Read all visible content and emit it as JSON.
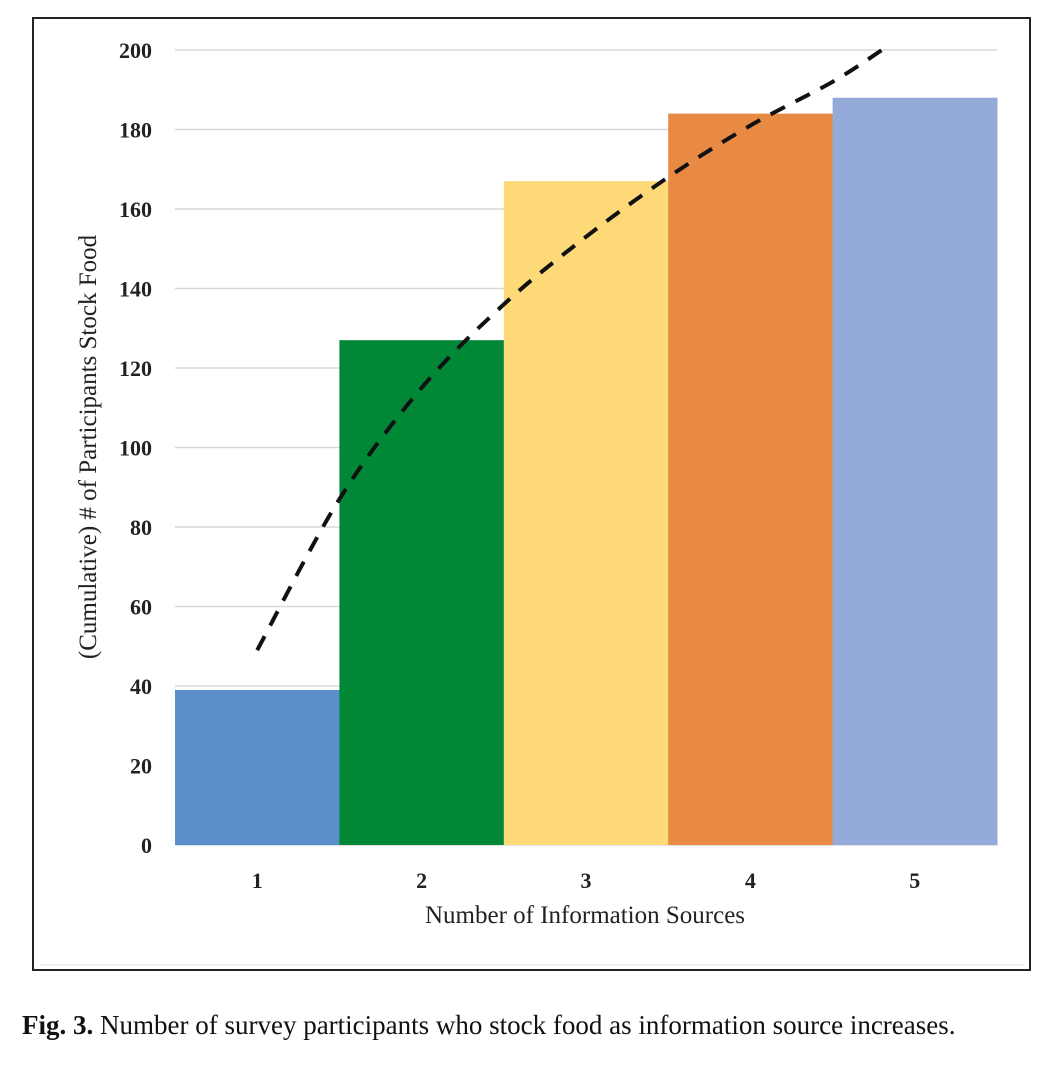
{
  "chart_data": {
    "type": "bar",
    "title": "",
    "xlabel": "Number of Information Sources",
    "ylabel": "(Cumulative) # of Participants Stock Food",
    "categories": [
      "1",
      "2",
      "3",
      "4",
      "5"
    ],
    "values": [
      39,
      127,
      167,
      184,
      188
    ],
    "colors": [
      "#5b8fcb",
      "#008837",
      "#fdd978",
      "#e88a43",
      "#94aad8"
    ],
    "ylim": [
      0,
      200
    ],
    "yticks": [
      "0",
      "20",
      "40",
      "60",
      "80",
      "100",
      "120",
      "140",
      "160",
      "180",
      "200"
    ],
    "grid": true,
    "legend": "none",
    "trendline": {
      "style": "dashed",
      "color": "#111111",
      "points": [
        [
          1,
          49
        ],
        [
          1.5,
          87
        ],
        [
          2,
          115
        ],
        [
          2.5,
          136
        ],
        [
          3,
          153
        ],
        [
          3.5,
          168
        ],
        [
          4,
          181
        ],
        [
          4.5,
          192
        ],
        [
          4.8,
          200
        ]
      ]
    }
  },
  "caption": {
    "label": "Fig. 3.",
    "text": "Number of survey participants who stock food as information source increases."
  }
}
